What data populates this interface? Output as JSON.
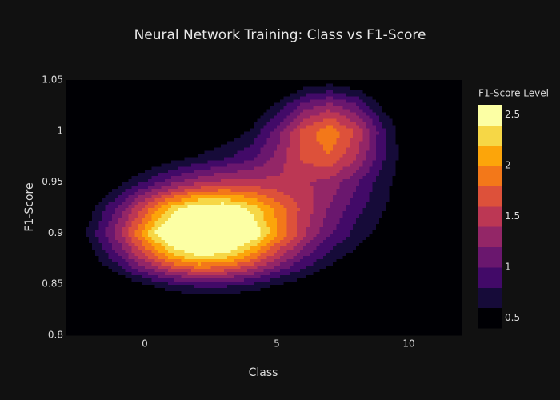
{
  "chart_data": {
    "type": "contour",
    "title": "Neural Network Training: Class vs F1-Score",
    "x_label": "Class",
    "y_label": "F1-Score",
    "colorbar_title": "F1-Score Level",
    "x": [
      -3,
      -2,
      -1,
      0,
      1,
      2,
      3,
      4,
      5,
      6,
      7,
      8,
      9,
      10,
      11,
      12
    ],
    "y": [
      0.8,
      0.825,
      0.85,
      0.875,
      0.9,
      0.925,
      0.95,
      0.975,
      1.0,
      1.025,
      1.05
    ],
    "z": [
      [
        0,
        0.01,
        0.01,
        0.02,
        0.03,
        0.04,
        0.04,
        0.04,
        0.04,
        0.04,
        0.03,
        0.03,
        0.02,
        0.01,
        0.01,
        0.01
      ],
      [
        0.02,
        0.05,
        0.08,
        0.12,
        0.16,
        0.19,
        0.2,
        0.2,
        0.17,
        0.15,
        0.11,
        0.08,
        0.06,
        0.04,
        0.03,
        0.02
      ],
      [
        0.08,
        0.18,
        0.35,
        0.56,
        0.75,
        0.86,
        0.85,
        0.75,
        0.59,
        0.44,
        0.32,
        0.23,
        0.17,
        0.11,
        0.07,
        0.04
      ],
      [
        0.21,
        0.49,
        0.93,
        1.49,
        1.99,
        2.27,
        2.19,
        1.85,
        1.4,
        0.99,
        0.68,
        0.48,
        0.33,
        0.22,
        0.14,
        0.08
      ],
      [
        0.31,
        0.7,
        1.33,
        2.12,
        2.85,
        3.24,
        3.16,
        2.68,
        2.04,
        1.46,
        1.03,
        0.73,
        0.51,
        0.34,
        0.21,
        0.13
      ],
      [
        0.25,
        0.56,
        1.04,
        1.67,
        2.25,
        2.61,
        2.62,
        2.34,
        1.92,
        1.53,
        1.18,
        0.88,
        0.62,
        0.41,
        0.25,
        0.15
      ],
      [
        0.13,
        0.28,
        0.51,
        0.81,
        1.12,
        1.35,
        1.46,
        1.47,
        1.45,
        1.43,
        1.32,
        1.04,
        0.7,
        0.41,
        0.24,
        0.14
      ],
      [
        0.06,
        0.13,
        0.22,
        0.35,
        0.48,
        0.62,
        0.76,
        0.94,
        1.26,
        1.65,
        1.78,
        1.42,
        0.85,
        0.42,
        0.2,
        0.1
      ],
      [
        0.03,
        0.06,
        0.1,
        0.16,
        0.23,
        0.3,
        0.42,
        0.63,
        1.08,
        1.68,
        1.96,
        1.57,
        0.88,
        0.37,
        0.15,
        0.06
      ],
      [
        0.01,
        0.02,
        0.04,
        0.07,
        0.09,
        0.13,
        0.18,
        0.32,
        0.65,
        1.08,
        1.29,
        1.04,
        0.56,
        0.22,
        0.07,
        0.02
      ],
      [
        0,
        0.01,
        0.01,
        0.02,
        0.03,
        0.04,
        0.06,
        0.11,
        0.22,
        0.38,
        0.45,
        0.36,
        0.21,
        0.07,
        0.02,
        0.01
      ]
    ],
    "xlim": [
      -3,
      12
    ],
    "ylim": [
      0.8,
      1.05
    ],
    "xticks": [
      0,
      5,
      10
    ],
    "yticks": [
      0.8,
      0.85,
      0.9,
      0.95,
      1,
      1.05
    ],
    "zlim": [
      0.4,
      2.6
    ],
    "zticks": [
      0.5,
      1,
      1.5,
      2,
      2.5
    ],
    "contours": {
      "start": 0.4,
      "end": 2.6,
      "size": 0.2
    },
    "colorscale": [
      "#000004",
      "#160b39",
      "#420a68",
      "#6a176e",
      "#932667",
      "#bc3754",
      "#dd513a",
      "#f37819",
      "#fca50a",
      "#f6d746",
      "#fcffa4"
    ],
    "plot_background": "#000004"
  }
}
